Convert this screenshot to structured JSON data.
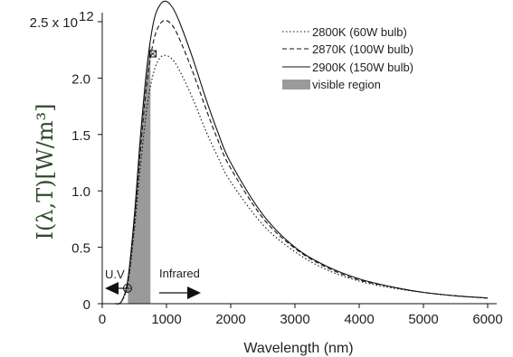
{
  "chart_data": {
    "type": "line",
    "title": "",
    "xlabel": "Wavelength (nm)",
    "ylabel": "I(λ,T)[W/m³]",
    "xlim": [
      0,
      6000
    ],
    "ylim": [
      0,
      2.5
    ],
    "y_scale_note": "2.5 x 10¹²",
    "x_ticks": [
      {
        "value": 0,
        "label": "0"
      },
      {
        "value": 1000,
        "label": "1000"
      },
      {
        "value": 2000,
        "label": "2000"
      },
      {
        "value": 3000,
        "label": "3000"
      },
      {
        "value": 4000,
        "label": "4000"
      },
      {
        "value": 5000,
        "label": "5000"
      },
      {
        "value": 6000,
        "label": "6000"
      }
    ],
    "y_ticks": [
      {
        "value": 0,
        "label": "0"
      },
      {
        "value": 0.5,
        "label": "0.5"
      },
      {
        "value": 1.0,
        "label": "1.0"
      },
      {
        "value": 1.5,
        "label": "1.5"
      },
      {
        "value": 2.0,
        "label": "2.0"
      },
      {
        "value": 2.5,
        "label": "2.5 x 10"
      }
    ],
    "y_top_exponent": "12",
    "series": [
      {
        "name": "2800K (60W bulb)",
        "style": "dotted",
        "x": [
          200,
          300,
          400,
          500,
          600,
          700,
          800,
          900,
          1000,
          1100,
          1200,
          1400,
          1600,
          1800,
          2000,
          2500,
          3000,
          3500,
          4000,
          4500,
          5000,
          5500,
          6000
        ],
        "values": [
          0.0,
          0.02,
          0.18,
          0.65,
          1.25,
          1.75,
          2.05,
          2.18,
          2.2,
          2.16,
          2.07,
          1.83,
          1.55,
          1.3,
          1.08,
          0.7,
          0.46,
          0.3,
          0.2,
          0.14,
          0.1,
          0.07,
          0.05
        ]
      },
      {
        "name": "2870K (100W bulb)",
        "style": "dashed",
        "x": [
          200,
          300,
          400,
          500,
          600,
          700,
          800,
          900,
          1000,
          1100,
          1200,
          1400,
          1600,
          1800,
          2000,
          2500,
          3000,
          3500,
          4000,
          4500,
          5000,
          5500,
          6000
        ],
        "values": [
          0.0,
          0.02,
          0.2,
          0.72,
          1.4,
          1.98,
          2.33,
          2.48,
          2.51,
          2.46,
          2.35,
          2.07,
          1.75,
          1.45,
          1.2,
          0.76,
          0.49,
          0.32,
          0.21,
          0.15,
          0.1,
          0.07,
          0.05
        ]
      },
      {
        "name": "2900K (150W bulb)",
        "style": "solid",
        "x": [
          200,
          300,
          400,
          500,
          600,
          700,
          800,
          900,
          1000,
          1100,
          1200,
          1400,
          1600,
          1800,
          2000,
          2500,
          3000,
          3500,
          4000,
          4500,
          5000,
          5500,
          6000
        ],
        "values": [
          0.0,
          0.02,
          0.22,
          0.78,
          1.52,
          2.12,
          2.5,
          2.65,
          2.68,
          2.62,
          2.5,
          2.19,
          1.84,
          1.52,
          1.25,
          0.79,
          0.5,
          0.33,
          0.22,
          0.15,
          0.1,
          0.07,
          0.05
        ]
      }
    ],
    "visible_region": {
      "label": "visible region",
      "x_range": [
        400,
        750
      ],
      "color": "#9a9a9a"
    },
    "legend": {
      "placement": "top-right",
      "entries": [
        {
          "label": "2800K (60W bulb)",
          "style": "dotted"
        },
        {
          "label": "2870K (100W bulb)",
          "style": "dashed"
        },
        {
          "label": "2900K (150W bulb)",
          "style": "solid"
        },
        {
          "label": "visible region",
          "style": "fill"
        }
      ]
    },
    "annotations": {
      "uv_label": "U.V",
      "ir_label": "Infrared"
    },
    "grid": false
  }
}
